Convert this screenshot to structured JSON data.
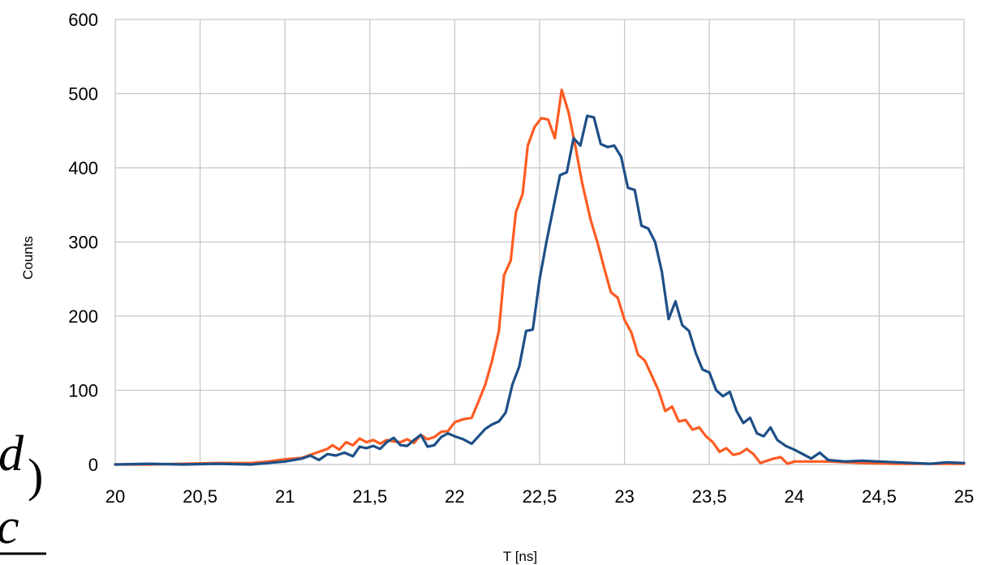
{
  "chart_data": {
    "type": "line",
    "xlabel": "T [ns]",
    "ylabel": "Counts",
    "xlim": [
      20,
      25
    ],
    "ylim": [
      0,
      600
    ],
    "x_ticks": [
      20,
      20.5,
      21,
      21.5,
      22,
      22.5,
      23,
      23.5,
      24,
      24.5,
      25
    ],
    "x_tick_labels": [
      "20",
      "20,5",
      "21",
      "21,5",
      "22",
      "22,5",
      "23",
      "23,5",
      "24",
      "24,5",
      "25"
    ],
    "y_ticks": [
      0,
      100,
      200,
      300,
      400,
      500,
      600
    ],
    "y_tick_labels": [
      "0",
      "100",
      "200",
      "300",
      "400",
      "500",
      "600"
    ],
    "grid": true,
    "series": [
      {
        "color": "#fe5b22",
        "points": [
          [
            20.0,
            0
          ],
          [
            20.2,
            0
          ],
          [
            20.4,
            1
          ],
          [
            20.6,
            2
          ],
          [
            20.8,
            2
          ],
          [
            20.9,
            4
          ],
          [
            21.0,
            7
          ],
          [
            21.1,
            9
          ],
          [
            21.15,
            13
          ],
          [
            21.2,
            17
          ],
          [
            21.25,
            21
          ],
          [
            21.28,
            26
          ],
          [
            21.32,
            20
          ],
          [
            21.36,
            30
          ],
          [
            21.4,
            26
          ],
          [
            21.44,
            35
          ],
          [
            21.48,
            30
          ],
          [
            21.52,
            33
          ],
          [
            21.56,
            28
          ],
          [
            21.6,
            33
          ],
          [
            21.64,
            31
          ],
          [
            21.68,
            30
          ],
          [
            21.72,
            34
          ],
          [
            21.76,
            29
          ],
          [
            21.8,
            40
          ],
          [
            21.84,
            34
          ],
          [
            21.88,
            37
          ],
          [
            21.92,
            44
          ],
          [
            21.96,
            45
          ],
          [
            22.0,
            57
          ],
          [
            22.05,
            61
          ],
          [
            22.1,
            63
          ],
          [
            22.14,
            85
          ],
          [
            22.18,
            108
          ],
          [
            22.22,
            140
          ],
          [
            22.26,
            180
          ],
          [
            22.29,
            255
          ],
          [
            22.33,
            275
          ],
          [
            22.36,
            340
          ],
          [
            22.4,
            365
          ],
          [
            22.43,
            430
          ],
          [
            22.47,
            455
          ],
          [
            22.51,
            467
          ],
          [
            22.55,
            465
          ],
          [
            22.59,
            440
          ],
          [
            22.63,
            505
          ],
          [
            22.67,
            475
          ],
          [
            22.71,
            430
          ],
          [
            22.75,
            380
          ],
          [
            22.8,
            330
          ],
          [
            22.84,
            300
          ],
          [
            22.88,
            265
          ],
          [
            22.92,
            232
          ],
          [
            22.96,
            225
          ],
          [
            23.0,
            195
          ],
          [
            23.04,
            178
          ],
          [
            23.08,
            148
          ],
          [
            23.12,
            140
          ],
          [
            23.16,
            120
          ],
          [
            23.2,
            100
          ],
          [
            23.24,
            72
          ],
          [
            23.28,
            78
          ],
          [
            23.32,
            58
          ],
          [
            23.36,
            60
          ],
          [
            23.4,
            47
          ],
          [
            23.44,
            50
          ],
          [
            23.48,
            38
          ],
          [
            23.52,
            30
          ],
          [
            23.56,
            17
          ],
          [
            23.6,
            22
          ],
          [
            23.64,
            13
          ],
          [
            23.68,
            15
          ],
          [
            23.72,
            21
          ],
          [
            23.76,
            14
          ],
          [
            23.8,
            2
          ],
          [
            23.84,
            5
          ],
          [
            23.88,
            8
          ],
          [
            23.92,
            10
          ],
          [
            23.96,
            1
          ],
          [
            24.0,
            4
          ],
          [
            24.2,
            4
          ],
          [
            24.4,
            2
          ],
          [
            24.6,
            1
          ],
          [
            24.8,
            1
          ],
          [
            25.0,
            1
          ]
        ]
      },
      {
        "color": "#1d4f87",
        "points": [
          [
            20.0,
            0
          ],
          [
            20.2,
            1
          ],
          [
            20.4,
            0
          ],
          [
            20.6,
            1
          ],
          [
            20.8,
            0
          ],
          [
            20.9,
            2
          ],
          [
            21.0,
            4
          ],
          [
            21.05,
            6
          ],
          [
            21.1,
            8
          ],
          [
            21.15,
            12
          ],
          [
            21.2,
            6
          ],
          [
            21.25,
            14
          ],
          [
            21.3,
            12
          ],
          [
            21.35,
            16
          ],
          [
            21.4,
            11
          ],
          [
            21.44,
            24
          ],
          [
            21.48,
            22
          ],
          [
            21.52,
            25
          ],
          [
            21.56,
            21
          ],
          [
            21.6,
            30
          ],
          [
            21.64,
            36
          ],
          [
            21.68,
            26
          ],
          [
            21.72,
            25
          ],
          [
            21.76,
            33
          ],
          [
            21.8,
            40
          ],
          [
            21.84,
            24
          ],
          [
            21.88,
            26
          ],
          [
            21.92,
            37
          ],
          [
            21.96,
            42
          ],
          [
            22.0,
            38
          ],
          [
            22.05,
            34
          ],
          [
            22.1,
            28
          ],
          [
            22.14,
            38
          ],
          [
            22.18,
            48
          ],
          [
            22.22,
            54
          ],
          [
            22.26,
            58
          ],
          [
            22.3,
            70
          ],
          [
            22.34,
            108
          ],
          [
            22.38,
            132
          ],
          [
            22.42,
            180
          ],
          [
            22.46,
            182
          ],
          [
            22.5,
            250
          ],
          [
            22.54,
            300
          ],
          [
            22.58,
            345
          ],
          [
            22.62,
            390
          ],
          [
            22.66,
            394
          ],
          [
            22.7,
            440
          ],
          [
            22.74,
            430
          ],
          [
            22.78,
            470
          ],
          [
            22.82,
            468
          ],
          [
            22.86,
            432
          ],
          [
            22.9,
            428
          ],
          [
            22.94,
            430
          ],
          [
            22.98,
            415
          ],
          [
            23.02,
            373
          ],
          [
            23.06,
            370
          ],
          [
            23.1,
            322
          ],
          [
            23.14,
            318
          ],
          [
            23.18,
            300
          ],
          [
            23.22,
            260
          ],
          [
            23.26,
            196
          ],
          [
            23.3,
            220
          ],
          [
            23.34,
            188
          ],
          [
            23.38,
            180
          ],
          [
            23.42,
            150
          ],
          [
            23.46,
            128
          ],
          [
            23.5,
            124
          ],
          [
            23.54,
            100
          ],
          [
            23.58,
            92
          ],
          [
            23.62,
            98
          ],
          [
            23.66,
            72
          ],
          [
            23.7,
            56
          ],
          [
            23.74,
            63
          ],
          [
            23.78,
            42
          ],
          [
            23.82,
            38
          ],
          [
            23.86,
            50
          ],
          [
            23.9,
            33
          ],
          [
            23.95,
            25
          ],
          [
            24.0,
            20
          ],
          [
            24.05,
            14
          ],
          [
            24.1,
            8
          ],
          [
            24.15,
            16
          ],
          [
            24.2,
            6
          ],
          [
            24.3,
            4
          ],
          [
            24.4,
            5
          ],
          [
            24.6,
            3
          ],
          [
            24.8,
            1
          ],
          [
            24.9,
            3
          ],
          [
            25.0,
            2
          ]
        ]
      }
    ]
  },
  "formula_fragment": {
    "top_text": "d",
    "paren_text": ")",
    "bottom_text": "c"
  }
}
